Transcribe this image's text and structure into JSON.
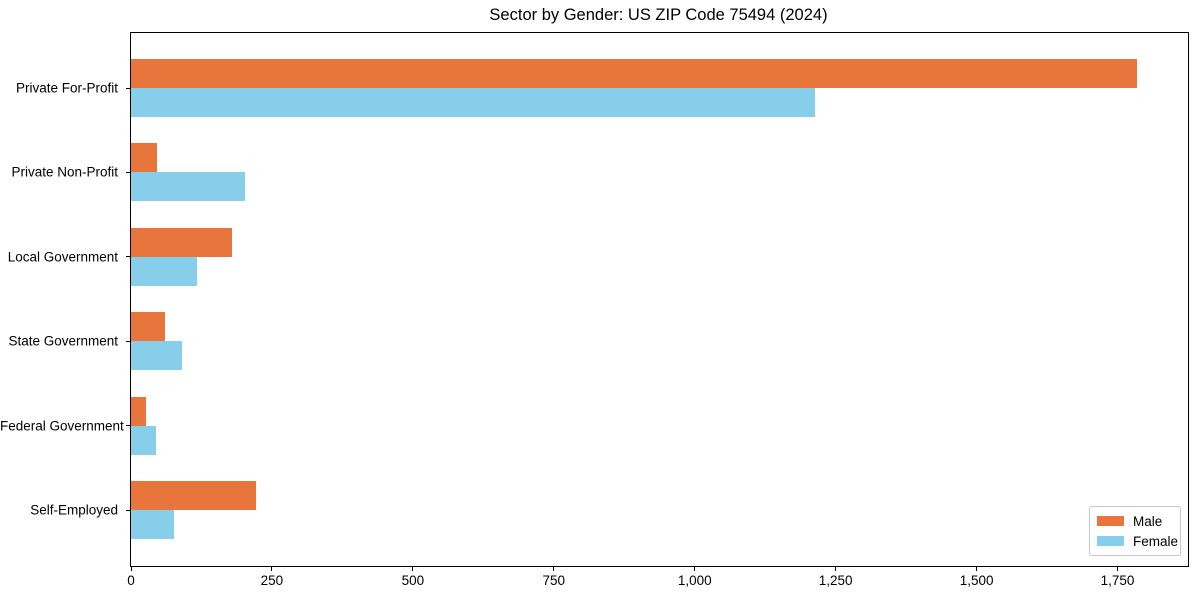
{
  "chart_data": {
    "type": "bar",
    "orientation": "horizontal",
    "title": "Sector by Gender: US ZIP Code 75494 (2024)",
    "categories": [
      "Private For-Profit",
      "Private Non-Profit",
      "Local Government",
      "State Government",
      "Federal Government",
      "Self-Employed"
    ],
    "series": [
      {
        "name": "Male",
        "color": "#E8763C",
        "values": [
          1784,
          46,
          179,
          60,
          26,
          222
        ]
      },
      {
        "name": "Female",
        "color": "#87CEEB",
        "values": [
          1214,
          202,
          117,
          90,
          45,
          76
        ]
      }
    ],
    "xlim": [
      0,
      1875
    ],
    "x_ticks": [
      0,
      250,
      500,
      750,
      1000,
      1250,
      1500,
      1750
    ],
    "x_tick_labels": [
      "0",
      "250",
      "500",
      "750",
      "1,000",
      "1,250",
      "1,500",
      "1,750"
    ],
    "xlabel": "",
    "ylabel": "",
    "grid": false,
    "legend_position": "lower right",
    "frame": true
  },
  "colors": {
    "background": "#ffffff",
    "spine": "#000000",
    "text": "#000000",
    "legend_border": "#c8c8c8"
  }
}
